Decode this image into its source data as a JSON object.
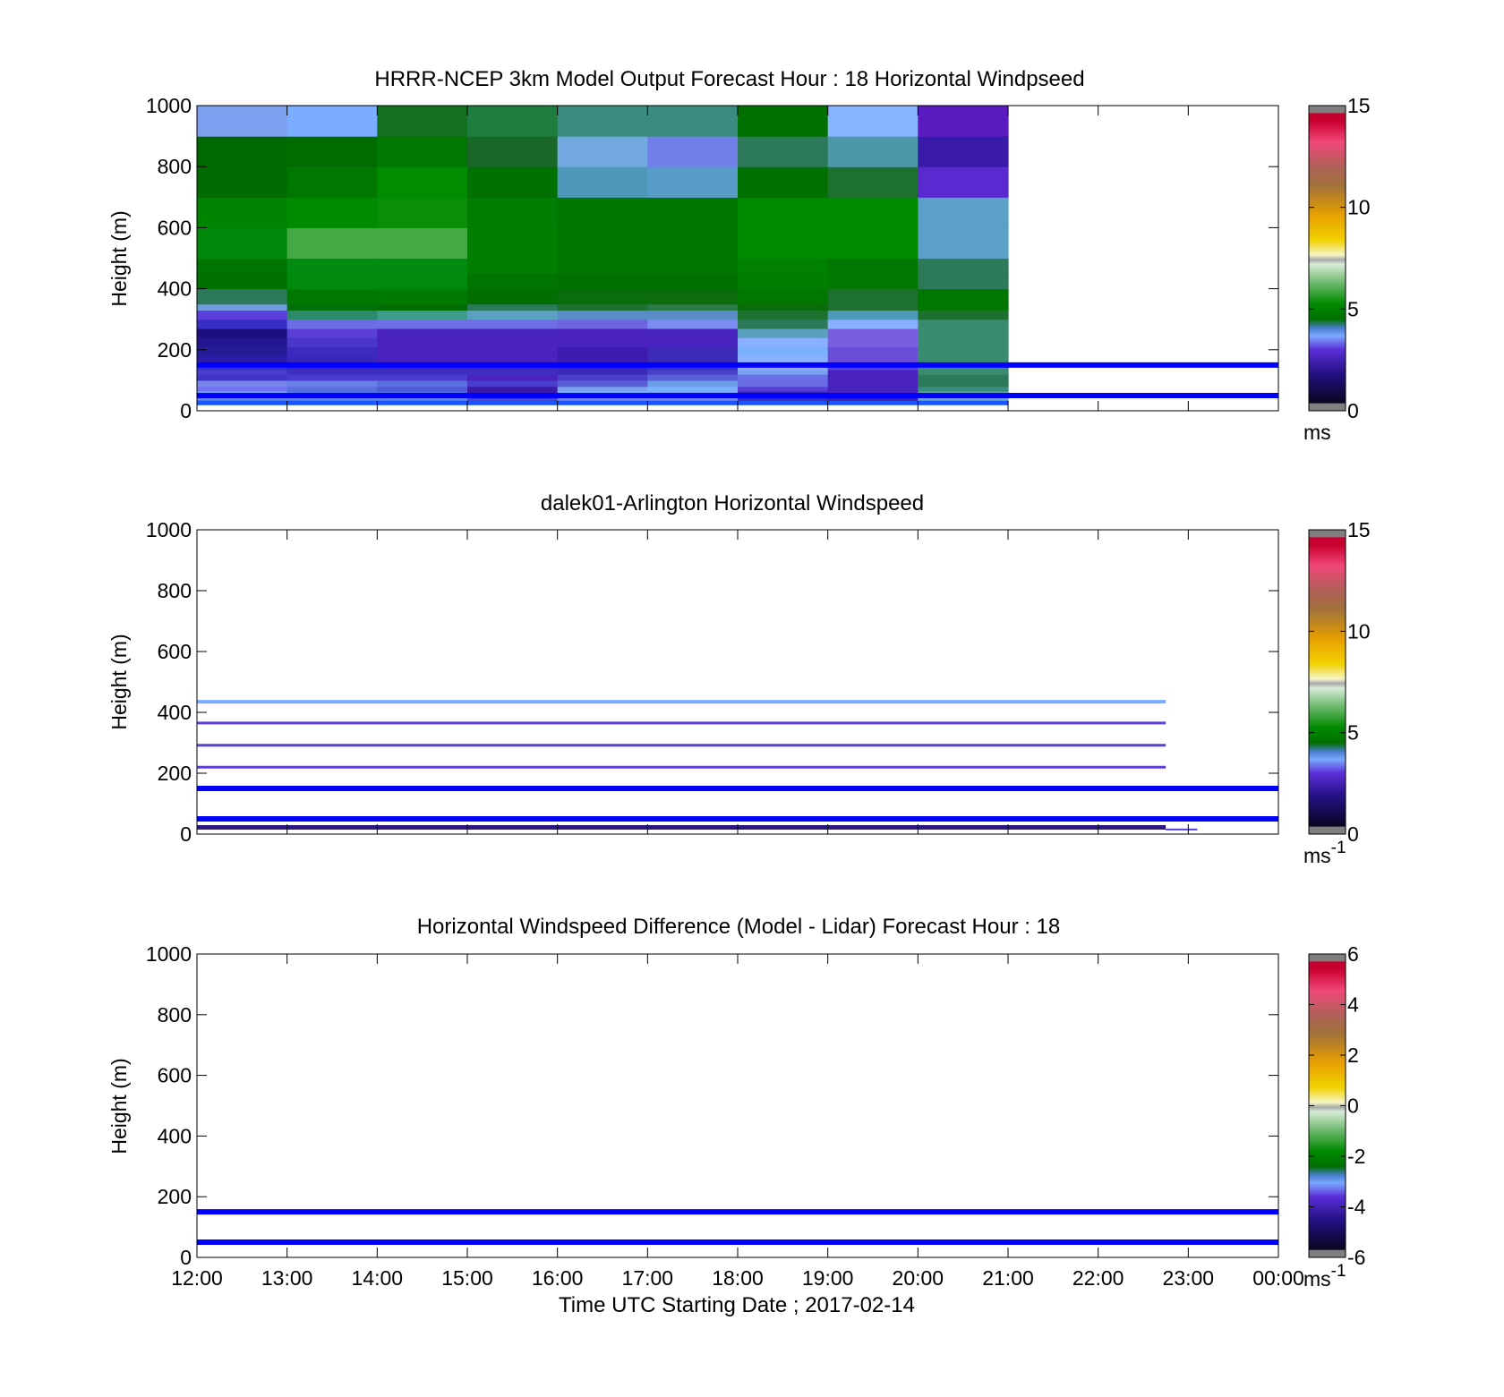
{
  "figure": {
    "xaxis_title": "Time UTC  Starting Date ; 2017-02-14",
    "x_tick_labels": [
      "12:00",
      "13:00",
      "14:00",
      "15:00",
      "16:00",
      "17:00",
      "18:00",
      "19:00",
      "20:00",
      "21:00",
      "22:00",
      "23:00",
      "00:00"
    ],
    "ref_line_color": "#0000ff",
    "ref_line_heights_m": [
      150,
      50
    ]
  },
  "chart_data": [
    {
      "type": "heatmap",
      "title": "HRRR-NCEP 3km Model Output   Forecast Hour : 18 Horizontal Windpseed",
      "ylabel": "Height (m)",
      "ylim": [
        0,
        1000
      ],
      "y_ticks": [
        "0",
        "200",
        "400",
        "600",
        "800",
        "1000"
      ],
      "xlim_hours": [
        12,
        24
      ],
      "colorbar": {
        "ticks": [
          "0",
          "5",
          "10",
          "15"
        ],
        "range": [
          0,
          15
        ],
        "unit": "ms",
        "unit_sup": ""
      },
      "cells_hour_starts": [
        12,
        13,
        14,
        15,
        16,
        17,
        18,
        19,
        20
      ],
      "cell_hours": 1,
      "row_edges_m": [
        20,
        35,
        50,
        65,
        80,
        100,
        120,
        135,
        150,
        180,
        210,
        240,
        270,
        300,
        330,
        350,
        400,
        450,
        500,
        600,
        700,
        800,
        900,
        1000
      ],
      "columns": [
        [
          "#1a55ff",
          "#5a8cf0",
          "#6ea5ff",
          "#6f74f0",
          "#7a85ee",
          "#3f35c8",
          "#4b3ed0",
          "#3d2fc0",
          "#2c1da8",
          "#261c98",
          "#221690",
          "#1c1080",
          "#3a2fc4",
          "#5b3fdc",
          "#6f9de0",
          "#2c7a5a",
          "#007200",
          "#007400",
          "#00880a",
          "#008400",
          "#006a00",
          "#006800",
          "#7d9ff0"
        ],
        [
          "#1a55ff",
          "#5a8cf0",
          "#4d70e6",
          "#5a6ee0",
          "#6b80e8",
          "#4a3ccc",
          "#3d2fc0",
          "#3b2abc",
          "#3a26b8",
          "#3a2ac0",
          "#4a36c8",
          "#5a3ed6",
          "#6a6ee6",
          "#2e8a6c",
          "#00700a",
          "#007800",
          "#008a0c",
          "#008a10",
          "#44a844",
          "#008a00",
          "#007800",
          "#006c00",
          "#7aacff"
        ],
        [
          "#1a55ff",
          "#5a8cf0",
          "#4d6ce0",
          "#4e5ad8",
          "#5a6ee0",
          "#4a3ccc",
          "#3d2fc0",
          "#3b2abc",
          "#4a22c0",
          "#4a22c0",
          "#4a22c0",
          "#4a22c0",
          "#6e6ee6",
          "#3e9d8a",
          "#006e00",
          "#007a00",
          "#008a0c",
          "#008a10",
          "#44a844",
          "#0a8e0a",
          "#008c00",
          "#007800",
          "#137020"
        ],
        [
          "#1a55ff",
          "#4a46cc",
          "#3a1aa8",
          "#3a1aa8",
          "#4a3ccc",
          "#4a22c0",
          "#3d2fc0",
          "#3b2abc",
          "#4a22c0",
          "#4a22c0",
          "#4a22c0",
          "#4a22c0",
          "#6e6ee6",
          "#5aa0c0",
          "#2c7a5a",
          "#006e00",
          "#007400",
          "#007e00",
          "#007e00",
          "#007c00",
          "#007000",
          "#196828",
          "#1d7d3e"
        ],
        [
          "#1a55ff",
          "#6e8cf0",
          "#7ab0ff",
          "#7aa0f0",
          "#5a5ed8",
          "#4a40c8",
          "#3a2ab8",
          "#3a26b8",
          "#3d1ab0",
          "#3d1ab0",
          "#4a22c0",
          "#4a22c0",
          "#6e66e0",
          "#5a8cc8",
          "#1e7030",
          "#0a6c0a",
          "#007000",
          "#007600",
          "#007600",
          "#007600",
          "#4d98b8",
          "#71a8e0",
          "#3a8c80"
        ],
        [
          "#1a55ff",
          "#6e8cf0",
          "#7aa0f0",
          "#7ab0ff",
          "#6a9ce8",
          "#5a5ed8",
          "#4a40c8",
          "#3d2fc0",
          "#3d2ab8",
          "#3d2ab8",
          "#4a22c0",
          "#4a22c0",
          "#7a8cf0",
          "#5a8cc8",
          "#2a7a4a",
          "#0c6c0c",
          "#007000",
          "#007600",
          "#007600",
          "#007600",
          "#5a9cc8",
          "#7080e8",
          "#3a8c80"
        ],
        [
          "#1a55ff",
          "#3a2ab8",
          "#3a2ab8",
          "#5a3ed6",
          "#6a6ee6",
          "#6a6ee6",
          "#7aa0f0",
          "#8ab0ff",
          "#8ab0ff",
          "#7ab0ff",
          "#8ab0ff",
          "#5aa0c0",
          "#2c7a5a",
          "#1e7030",
          "#0a6c0a",
          "#007800",
          "#007e00",
          "#008000",
          "#008a00",
          "#008a00",
          "#007000",
          "#2c7a5a",
          "#007000"
        ],
        [
          "#1a55ff",
          "#3a1aa8",
          "#4a22c0",
          "#4a22c0",
          "#4a22c0",
          "#4a22c0",
          "#4a22c0",
          "#5a3ed6",
          "#6a4ed8",
          "#6a4ed8",
          "#7a5ee0",
          "#7a5ee0",
          "#88b0ff",
          "#4d98b8",
          "#1e7030",
          "#1e7030",
          "#007800",
          "#007800",
          "#008a00",
          "#008a00",
          "#1e7030",
          "#4d98a8",
          "#88b4ff"
        ],
        [
          "#1a55ff",
          "#6ab0c8",
          "#5aa0a0",
          "#3a8c80",
          "#2c7a5a",
          "#2c7a5a",
          "#3a8c70",
          "#3a8c70",
          "#3a8c70",
          "#3a8c70",
          "#3a8c70",
          "#3a8c70",
          "#3a8c70",
          "#1e7030",
          "#007800",
          "#007800",
          "#2c7a5a",
          "#2c7a5a",
          "#5aa0c8",
          "#5aa0c8",
          "#5a2ad0",
          "#3a1aa8",
          "#5a1ac0"
        ]
      ]
    },
    {
      "type": "line",
      "title": "dalek01-Arlington  Horizontal Windspeed",
      "ylabel": "Height (m)",
      "ylim": [
        0,
        1000
      ],
      "y_ticks": [
        "0",
        "200",
        "400",
        "600",
        "800",
        "1000"
      ],
      "xlim_hours": [
        12,
        24
      ],
      "colorbar": {
        "ticks": [
          "0",
          "5",
          "10",
          "15"
        ],
        "range": [
          0,
          15
        ],
        "unit": "ms",
        "unit_sup": "-1"
      },
      "series": [
        {
          "height_m": 435,
          "x_hours": [
            12,
            22.75
          ],
          "color": "#7aacff",
          "width": 4
        },
        {
          "height_m": 365,
          "x_hours": [
            12,
            22.75
          ],
          "color": "#5b3fd8",
          "width": 3
        },
        {
          "height_m": 292,
          "x_hours": [
            12,
            22.75
          ],
          "color": "#5b3fd8",
          "width": 3
        },
        {
          "height_m": 220,
          "x_hours": [
            12,
            22.75
          ],
          "color": "#5b3fd8",
          "width": 3
        },
        {
          "height_m": 22,
          "x_hours": [
            12,
            22.75
          ],
          "color": "#2a1880",
          "width": 5
        },
        {
          "height_m": 15,
          "x_hours": [
            22.75,
            23.1
          ],
          "color": "#5b3fd8",
          "width": 2
        }
      ]
    },
    {
      "type": "line",
      "title": "Horizontal Windspeed Difference (Model - Lidar) Forecast Hour : 18",
      "ylabel": "Height (m)",
      "ylim": [
        0,
        1000
      ],
      "y_ticks": [
        "0",
        "200",
        "400",
        "600",
        "800",
        "1000"
      ],
      "xlim_hours": [
        12,
        24
      ],
      "colorbar": {
        "ticks": [
          "-6",
          "-4",
          "-2",
          "0",
          "2",
          "4",
          "6"
        ],
        "range": [
          -6,
          6
        ],
        "unit": "ms",
        "unit_sup": "-1"
      },
      "series": []
    }
  ]
}
